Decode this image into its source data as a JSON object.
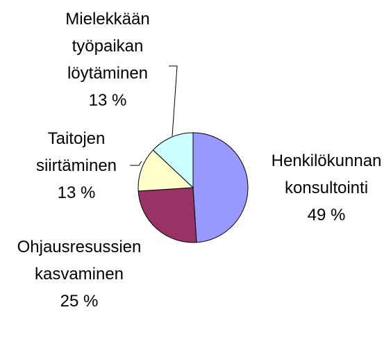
{
  "chart_data": {
    "type": "pie",
    "categories": [
      "Henkilökunnan konsultointi",
      "Ohjausresussien kasvaminen",
      "Taitojen siirtäminen",
      "Mielekkään työpaikan löytäminen"
    ],
    "values": [
      49,
      25,
      13,
      13
    ],
    "value_labels": [
      "49 %",
      "25 %",
      "13 %",
      "13 %"
    ],
    "colors": [
      "#9999ff",
      "#993366",
      "#ffffcc",
      "#ccffff"
    ]
  }
}
